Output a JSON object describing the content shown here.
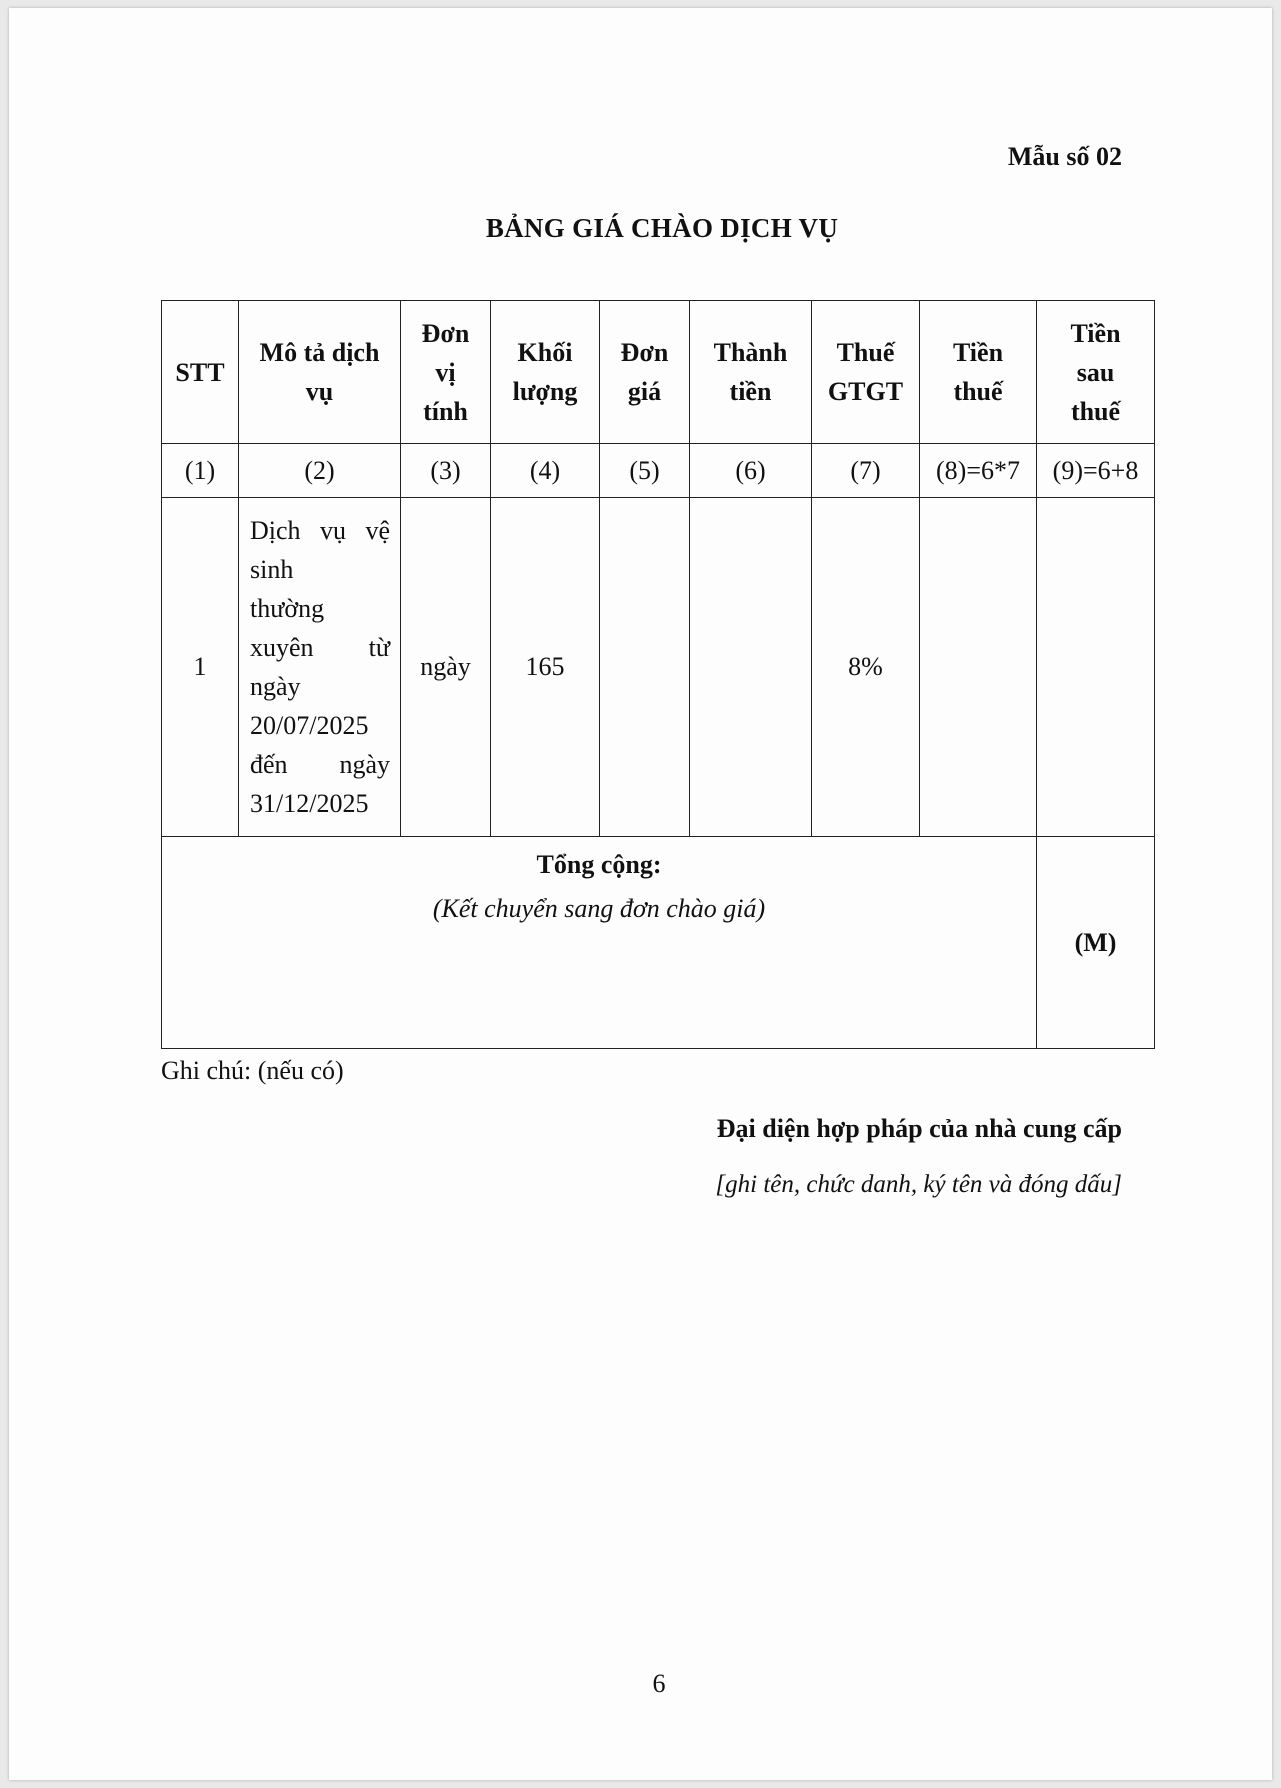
{
  "form_number": "Mẫu số 02",
  "title": "BẢNG GIÁ CHÀO DỊCH VỤ",
  "table": {
    "headers": [
      "STT",
      "Mô tả dịch vụ",
      "Đơn vị tính",
      "Khối lượng",
      "Đơn giá",
      "Thành tiền",
      "Thuế GTGT",
      "Tiền thuế",
      "Tiền sau thuế"
    ],
    "header_lines": [
      [
        "STT"
      ],
      [
        "Mô tả dịch",
        "vụ"
      ],
      [
        "Đơn",
        "vị",
        "tính"
      ],
      [
        "Khối",
        "lượng"
      ],
      [
        "Đơn",
        "giá"
      ],
      [
        "Thành",
        "tiền"
      ],
      [
        "Thuế",
        "GTGT"
      ],
      [
        "Tiền",
        "thuế"
      ],
      [
        "Tiền",
        "sau",
        "thuế"
      ]
    ],
    "column_numbers": [
      "(1)",
      "(2)",
      "(3)",
      "(4)",
      "(5)",
      "(6)",
      "(7)",
      "(8)=6*7",
      "(9)=6+8"
    ],
    "rows": [
      {
        "stt": "1",
        "description": "Dịch vụ vệ sinh thường xuyên từ ngày 20/07/2025 đến ngày 31/12/2025",
        "description_lines": [
          "Dịch vụ vệ",
          "sinh",
          "thường",
          "xuyên từ",
          "ngày",
          "20/07/2025",
          "đến ngày",
          "31/12/2025"
        ],
        "unit": "ngày",
        "quantity": "165",
        "unit_price": "",
        "amount": "",
        "vat_rate": "8%",
        "tax_amount": "",
        "total_after_tax": ""
      }
    ],
    "total_label": "Tổng cộng:",
    "total_note": "(Kết chuyển sang đơn chào giá)",
    "total_value": "(M)"
  },
  "note": "Ghi chú: (nếu có)",
  "representative": "Đại diện hợp pháp của nhà cung cấp",
  "signature_instruction": "[ghi tên, chức danh, ký tên và đóng dấu]",
  "page_number": "6"
}
